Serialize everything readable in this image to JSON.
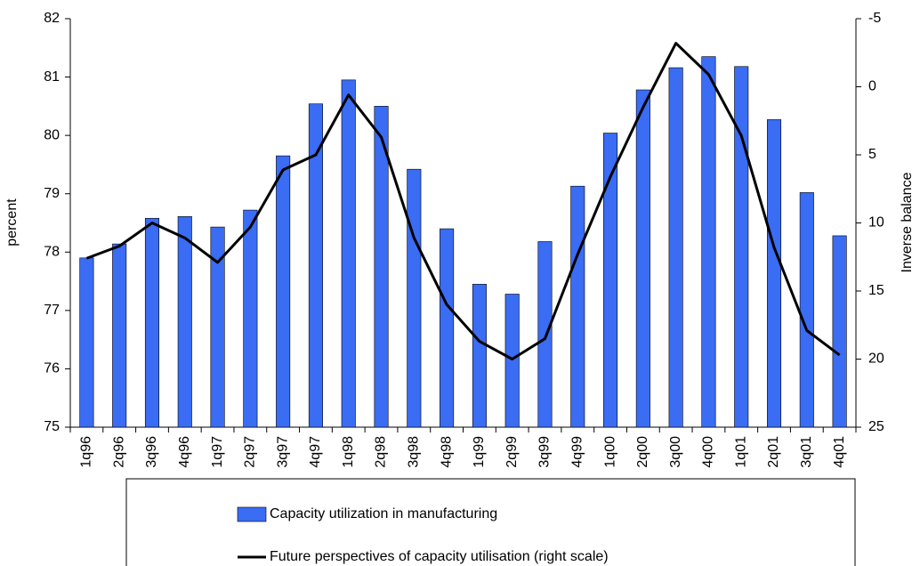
{
  "chart_data": {
    "type": "bar",
    "y_label": "percent",
    "y2_label": "Inverse balance",
    "categories": [
      "1q96",
      "2q96",
      "3q96",
      "4q96",
      "1q97",
      "2q97",
      "3q97",
      "4q97",
      "1q98",
      "2q98",
      "3q98",
      "4q98",
      "1q99",
      "2q99",
      "3q99",
      "4q99",
      "1q00",
      "2q00",
      "3q00",
      "4q00",
      "1q01",
      "2q01",
      "3q01",
      "4q01"
    ],
    "series": [
      {
        "name": "Capacity utilization in manufacturing",
        "type": "bar",
        "axis": "y",
        "color": "#3a6cf4",
        "values": [
          77.9,
          78.14,
          78.58,
          78.61,
          78.43,
          78.72,
          79.65,
          80.54,
          80.95,
          80.5,
          79.42,
          78.4,
          77.45,
          77.28,
          78.18,
          79.13,
          80.04,
          80.78,
          81.16,
          81.35,
          81.18,
          80.27,
          79.02,
          78.28
        ]
      },
      {
        "name": "Future perspectives of capacity utilisation (right scale)",
        "type": "line",
        "axis": "y2",
        "color": "#000000",
        "values": [
          12.6,
          11.7,
          10.0,
          11.1,
          12.9,
          10.3,
          6.1,
          5.0,
          0.6,
          3.7,
          11.1,
          16.0,
          18.7,
          20.0,
          18.5,
          12.3,
          6.6,
          1.5,
          -3.2,
          -0.9,
          3.6,
          11.8,
          17.9,
          19.7
        ]
      }
    ],
    "ylim": [
      75,
      82
    ],
    "yticks": [
      75,
      76,
      77,
      78,
      79,
      80,
      81,
      82
    ],
    "y2lim": [
      25,
      -5
    ],
    "y2ticks": [
      -5,
      0,
      5,
      10,
      15,
      20,
      25
    ],
    "grid": false,
    "legend": "bottom"
  }
}
